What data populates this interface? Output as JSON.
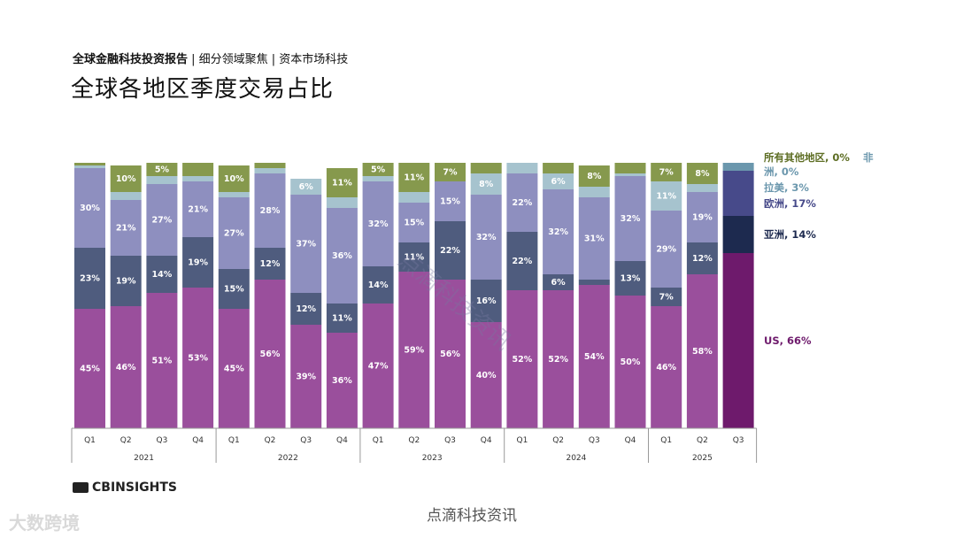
{
  "header": {
    "subtitle_bold": "全球金融科技投资报告",
    "subtitle_rest": " | 细分领域聚焦 | 资本市场科技",
    "title": "全球各地区季度交易占比"
  },
  "footer": {
    "logo_text": "CBINSIGHTS",
    "source": "点滴科技资讯",
    "watermark_bl": "大数跨境",
    "watermark_diag": "点滴科技资讯"
  },
  "chart_data": {
    "type": "bar",
    "stacked": true,
    "normalized": true,
    "categories": [
      "Q1",
      "Q2",
      "Q3",
      "Q4",
      "Q1",
      "Q2",
      "Q3",
      "Q4",
      "Q1",
      "Q2",
      "Q3",
      "Q4",
      "Q1",
      "Q2",
      "Q3",
      "Q4",
      "Q1",
      "Q2",
      "Q3"
    ],
    "years": [
      {
        "label": "2021",
        "count": 4
      },
      {
        "label": "2022",
        "count": 4
      },
      {
        "label": "2023",
        "count": 4
      },
      {
        "label": "2024",
        "count": 4
      },
      {
        "label": "2025",
        "count": 3
      }
    ],
    "series": [
      {
        "name": "US",
        "color": "#9a4f9c",
        "highlight": "#6e1a6c",
        "values": [
          45,
          46,
          51,
          53,
          45,
          56,
          39,
          36,
          47,
          59,
          56,
          40,
          52,
          52,
          54,
          50,
          46,
          58,
          66
        ]
      },
      {
        "name": "亚洲",
        "color": "#4f5c7e",
        "highlight": "#1d2a4f",
        "values": [
          23,
          19,
          14,
          19,
          15,
          12,
          12,
          11,
          14,
          11,
          22,
          16,
          22,
          6,
          2,
          13,
          7,
          12,
          14
        ]
      },
      {
        "name": "欧洲",
        "color": "#8e8fbf",
        "highlight": "#474a8a",
        "values": [
          30,
          21,
          27,
          21,
          27,
          28,
          37,
          36,
          32,
          15,
          15,
          32,
          22,
          32,
          31,
          32,
          29,
          19,
          17
        ]
      },
      {
        "name": "拉美",
        "color": "#a6c3ce",
        "highlight": "#6b97ad",
        "values": [
          1,
          3,
          3,
          2,
          2,
          2,
          6,
          4,
          2,
          4,
          0,
          8,
          4,
          6,
          4,
          1,
          11,
          3,
          3
        ]
      },
      {
        "name": "所有其他地区",
        "color": "#86994d",
        "highlight": "#5e6e24",
        "values": [
          1,
          10,
          5,
          5,
          10,
          2,
          0,
          11,
          5,
          11,
          7,
          4,
          0,
          4,
          8,
          4,
          7,
          8,
          0
        ]
      }
    ],
    "data_labels": [
      [
        45,
        23,
        30,
        null,
        null
      ],
      [
        46,
        19,
        21,
        null,
        10
      ],
      [
        51,
        14,
        27,
        null,
        5
      ],
      [
        53,
        19,
        21,
        null,
        null
      ],
      [
        45,
        15,
        27,
        null,
        10
      ],
      [
        56,
        12,
        28,
        null,
        null
      ],
      [
        39,
        12,
        37,
        6,
        null
      ],
      [
        36,
        11,
        36,
        null,
        11
      ],
      [
        47,
        14,
        32,
        null,
        5
      ],
      [
        59,
        11,
        15,
        null,
        11
      ],
      [
        56,
        22,
        15,
        null,
        7
      ],
      [
        40,
        16,
        32,
        8,
        null
      ],
      [
        52,
        22,
        22,
        null,
        null
      ],
      [
        52,
        6,
        32,
        6,
        null
      ],
      [
        54,
        null,
        31,
        null,
        8
      ],
      [
        50,
        13,
        32,
        null,
        null
      ],
      [
        46,
        7,
        29,
        11,
        7
      ],
      [
        58,
        12,
        19,
        null,
        8
      ],
      [
        null,
        null,
        null,
        null,
        null
      ]
    ],
    "legend": [
      {
        "text": "所有其他地区, 0%",
        "extra": "非洲, 0%",
        "series": 4
      },
      {
        "text": "拉美, 3%",
        "series": 3
      },
      {
        "text": "欧洲, 17%",
        "series": 2
      },
      {
        "text": "亚洲, 14%",
        "series": 1
      },
      {
        "text": "US, 66%",
        "series": 0
      }
    ],
    "ylim": [
      0,
      100
    ]
  }
}
